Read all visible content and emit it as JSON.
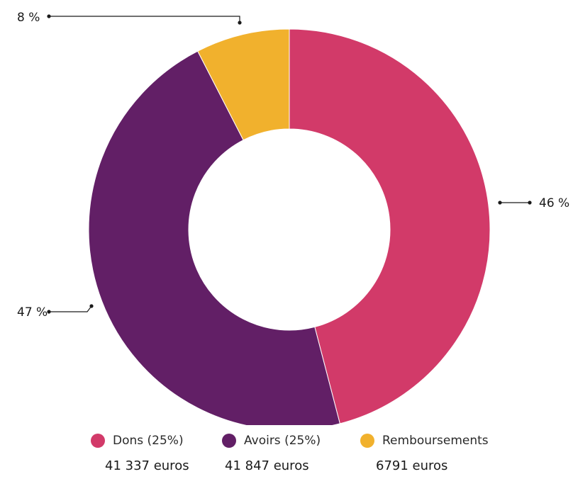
{
  "chart_data": {
    "type": "pie",
    "title": "",
    "categories": [
      "Dons (25%)",
      "Avoirs (25%)",
      "Remboursements"
    ],
    "values": [
      41337,
      41847,
      6791
    ],
    "percent_labels": [
      "46 %",
      "47 %",
      "8 %"
    ],
    "amount_labels": [
      "41 337 euros",
      "41 847 euros",
      "6791 euros"
    ],
    "colors": [
      "#d23a69",
      "#621f66",
      "#f1b12d"
    ],
    "donut": true,
    "legend_position": "bottom",
    "start_angle_deg": 0,
    "direction": "clockwise"
  }
}
